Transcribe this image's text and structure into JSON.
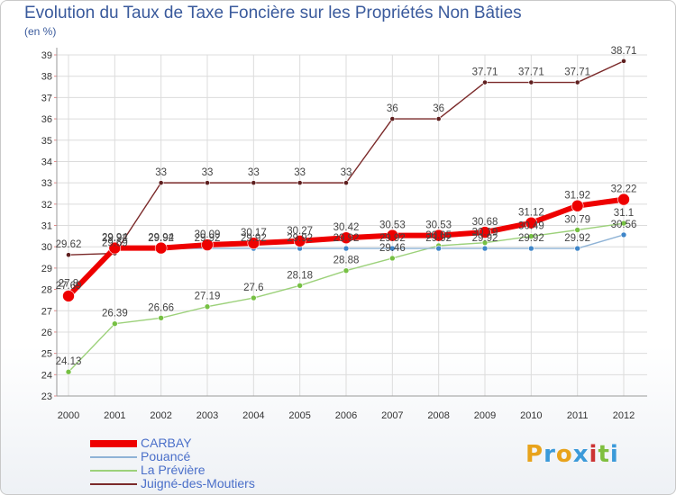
{
  "title": "Evolution du Taux de Taxe Foncière sur les Propriétés Non Bâties",
  "unit_label": "(en %)",
  "logo": {
    "letters": [
      "P",
      "r",
      "o",
      "x",
      "i",
      "t",
      "i"
    ],
    "colors": [
      "#e8a31c",
      "#3b9ad9",
      "#e8a31c",
      "#3b9ad9",
      "#cc3333",
      "#7fbf3f",
      "#3b9ad9"
    ]
  },
  "chart_data": {
    "type": "line",
    "title": "Evolution du Taux de Taxe Foncière sur les Propriétés Non Bâties",
    "ylabel": "(en %)",
    "xlabel": "",
    "x": [
      "2000",
      "2001",
      "2002",
      "2003",
      "2004",
      "2005",
      "2006",
      "2007",
      "2008",
      "2009",
      "2010",
      "2011",
      "2012"
    ],
    "ylim": [
      23,
      39
    ],
    "yticks": [
      "23",
      "24",
      "25",
      "26",
      "27",
      "28",
      "29",
      "30",
      "31",
      "32",
      "33",
      "34",
      "35",
      "36",
      "37",
      "38",
      "39"
    ],
    "grid": true,
    "legend_position": "bottom-left",
    "series": [
      {
        "name": "Juigné-des-Moutiers",
        "color": "#7b2a2a",
        "marker": "#5e1f1f",
        "width": 1.4,
        "r": 2.6,
        "values": [
          29.62,
          29.69,
          33,
          33,
          33,
          33,
          33,
          36,
          36,
          37.71,
          37.71,
          37.71,
          38.71
        ],
        "labels": [
          "29.62",
          "29.69",
          "33",
          "33",
          "33",
          "33",
          "33",
          "36",
          "36",
          "37.71",
          "37.71",
          "37.71",
          "38.71"
        ]
      },
      {
        "name": "La Prévière",
        "color": "#9cd17a",
        "marker": "#76c043",
        "width": 1.4,
        "r": 3,
        "values": [
          24.13,
          26.39,
          26.66,
          27.19,
          27.6,
          28.18,
          28.88,
          29.46,
          30.05,
          30.19,
          30.49,
          30.79,
          31.1
        ],
        "labels": [
          "24.13",
          "26.39",
          "26.66",
          "27.19",
          "27.6",
          "28.18",
          "28.88",
          "29.46",
          "30.05",
          "30.19",
          "30.49",
          "30.79",
          "31.1"
        ]
      },
      {
        "name": "Pouancé",
        "color": "#8fb3d6",
        "marker": "#3f86c9",
        "width": 1.4,
        "r": 3,
        "values": [
          27.8,
          29.92,
          29.92,
          29.92,
          29.92,
          29.92,
          29.92,
          29.92,
          29.92,
          29.92,
          29.92,
          29.92,
          30.56
        ],
        "labels": [
          "27.8",
          "29.92",
          "29.92",
          "29.92",
          "29.92",
          "29.92",
          "29.92",
          "29.92",
          "29.92",
          "29.92",
          "29.92",
          "29.92",
          "30.56"
        ]
      },
      {
        "name": "CARBAY",
        "color": "#ee0000",
        "marker": "#ee0000",
        "width": 6,
        "r": 6.5,
        "values": [
          27.69,
          29.94,
          29.94,
          30.09,
          30.17,
          30.27,
          30.42,
          30.53,
          30.53,
          30.68,
          31.12,
          31.92,
          32.22
        ],
        "labels": [
          "27.69",
          "29.94",
          "29.94",
          "30.09",
          "30.17",
          "30.27",
          "30.42",
          "30.53",
          "30.53",
          "30.68",
          "31.12",
          "31.92",
          "32.22"
        ]
      }
    ]
  }
}
